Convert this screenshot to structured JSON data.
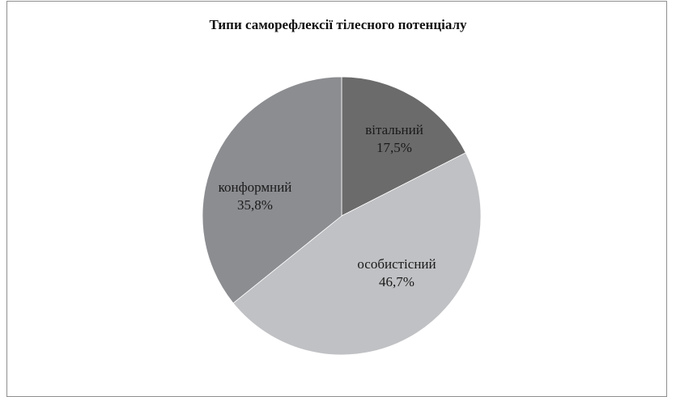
{
  "chart_data": {
    "type": "pie",
    "title": "Типи саморефлексії тілесного потенціалу",
    "slices": [
      {
        "label": "вітальний",
        "value_label": "17,5%",
        "value": 17.5,
        "color": "#6b6b6b"
      },
      {
        "label": "особистісний",
        "value_label": "46,7%",
        "value": 46.7,
        "color": "#c0c1c4"
      },
      {
        "label": "конформний",
        "value_label": "35,8%",
        "value": 35.8,
        "color": "#8c8d91"
      }
    ]
  }
}
